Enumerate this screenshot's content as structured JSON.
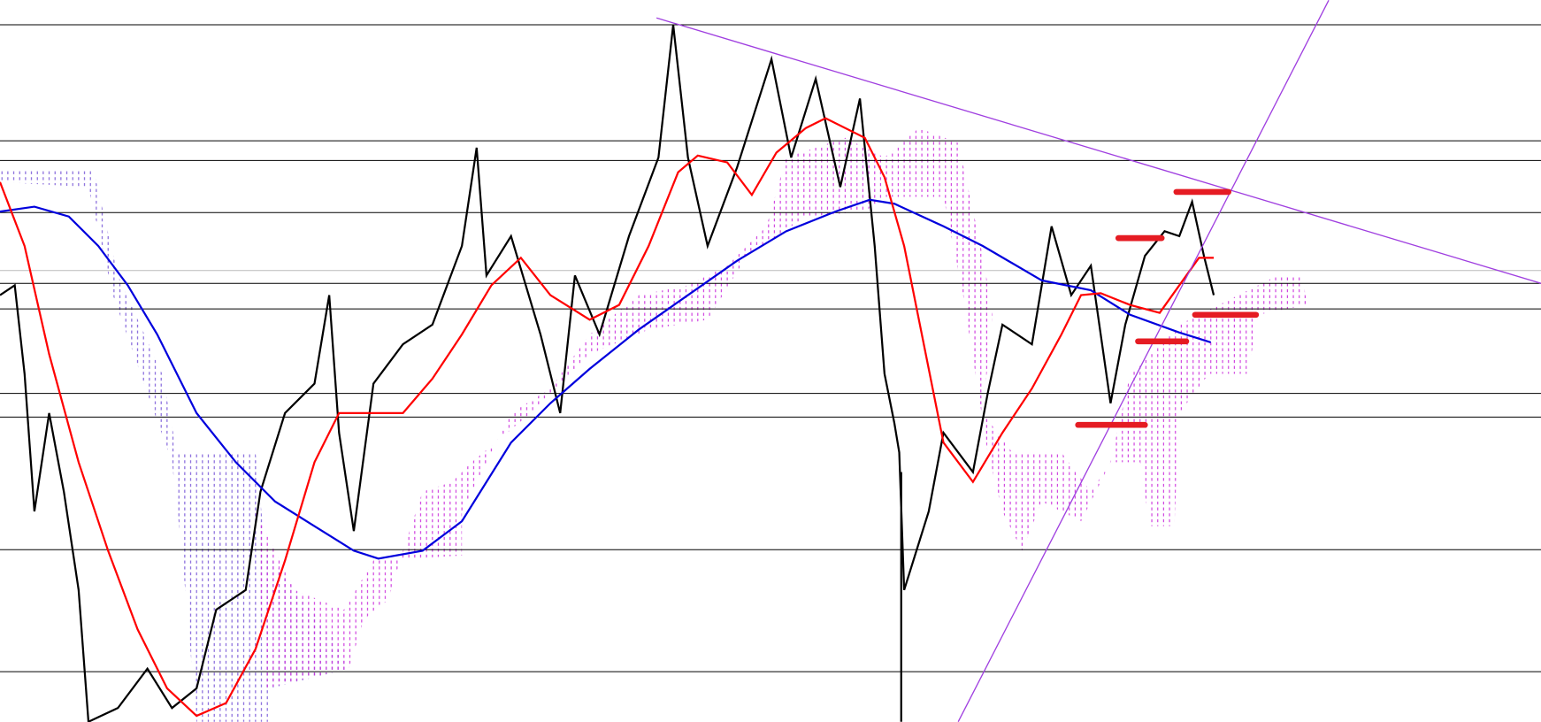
{
  "chart_data": {
    "type": "candlestick",
    "grid": false,
    "colors": {
      "price": "#000000",
      "fast_ma": "#ff0000",
      "slow_ma": "#0000dd",
      "cloud": "#cc33dd",
      "trendline": "#a040e0",
      "level": "#000000",
      "marker": "#e51c23"
    }
  }
}
